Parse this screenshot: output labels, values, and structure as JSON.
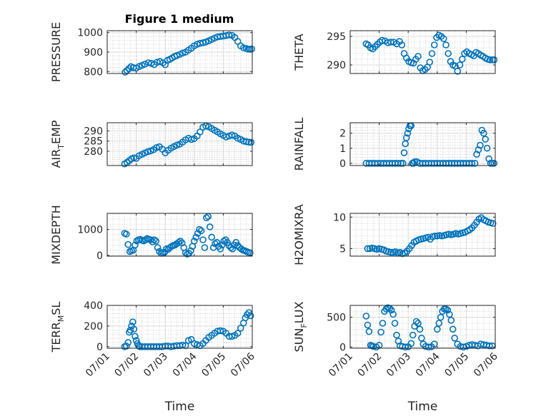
{
  "figure": {
    "title": "Figure 1 medium"
  },
  "chart_data": [
    {
      "type": "scatter",
      "name": "pressure",
      "ylabel": "PRESSURE",
      "ylabel_sub": "",
      "ylabel_post": "",
      "xlim": [
        0,
        5
      ],
      "ylim": [
        790,
        1010
      ],
      "yticks": [
        800,
        900,
        1000
      ],
      "xticks": [
        0,
        1,
        2,
        3,
        4,
        5
      ],
      "xticklabels": [],
      "xlabel": "",
      "title_on_top": true,
      "x": [
        0.62,
        0.68,
        0.75,
        0.82,
        0.9,
        1.0,
        1.1,
        1.2,
        1.3,
        1.42,
        1.52,
        1.62,
        1.72,
        1.82,
        1.92,
        2.0,
        2.08,
        2.16,
        2.24,
        2.32,
        2.4,
        2.5,
        2.6,
        2.7,
        2.8,
        2.9,
        3.0,
        3.1,
        3.2,
        3.3,
        3.4,
        3.5,
        3.6,
        3.7,
        3.8,
        3.9,
        4.0,
        4.1,
        4.2,
        4.3,
        4.4,
        4.5,
        4.6,
        4.7,
        4.8,
        4.86,
        4.92,
        4.98
      ],
      "y": [
        797,
        805,
        815,
        825,
        820,
        818,
        826,
        832,
        838,
        845,
        842,
        836,
        848,
        852,
        845,
        835,
        858,
        863,
        870,
        878,
        882,
        888,
        895,
        900,
        910,
        920,
        932,
        940,
        945,
        948,
        952,
        958,
        965,
        972,
        978,
        980,
        982,
        985,
        988,
        986,
        975,
        955,
        932,
        922,
        918,
        915,
        915,
        916
      ]
    },
    {
      "type": "scatter",
      "name": "theta",
      "ylabel": "THETA",
      "ylabel_sub": "",
      "ylabel_post": "",
      "xlim": [
        0,
        5
      ],
      "ylim": [
        288.5,
        296
      ],
      "yticks": [
        290,
        295
      ],
      "xticks": [
        0,
        1,
        2,
        3,
        4,
        5
      ],
      "xticklabels": [],
      "xlabel": "",
      "title_on_top": false,
      "x": [
        0.55,
        0.62,
        0.7,
        0.78,
        0.86,
        0.94,
        1.02,
        1.1,
        1.2,
        1.3,
        1.4,
        1.5,
        1.6,
        1.7,
        1.78,
        1.86,
        1.94,
        2.02,
        2.1,
        2.18,
        2.26,
        2.34,
        2.42,
        2.5,
        2.58,
        2.66,
        2.74,
        2.82,
        2.9,
        2.98,
        3.06,
        3.14,
        3.22,
        3.3,
        3.38,
        3.46,
        3.54,
        3.62,
        3.7,
        3.78,
        3.86,
        3.94,
        4.02,
        4.1,
        4.18,
        4.26,
        4.34,
        4.42,
        4.5,
        4.58,
        4.66,
        4.74,
        4.82,
        4.9,
        4.96
      ],
      "y": [
        293.7,
        293.5,
        293.0,
        292.8,
        293.2,
        293.6,
        294.0,
        294.3,
        294.2,
        293.9,
        294.0,
        294.0,
        293.7,
        294.1,
        293.5,
        292.0,
        291.2,
        290.6,
        290.4,
        290.3,
        291.0,
        291.5,
        289.5,
        289.0,
        289.2,
        289.6,
        290.5,
        292.0,
        293.5,
        294.8,
        295.2,
        295.0,
        294.6,
        293.5,
        292.0,
        290.6,
        290.0,
        289.8,
        288.9,
        290.0,
        291.0,
        292.0,
        292.3,
        292.0,
        291.8,
        291.6,
        292.2,
        292.0,
        291.7,
        291.5,
        291.2,
        291.0,
        290.9,
        290.9,
        290.9
      ]
    },
    {
      "type": "scatter",
      "name": "air_temp",
      "ylabel": "AIR",
      "ylabel_sub": "T",
      "ylabel_post": "EMP",
      "xlim": [
        0,
        5
      ],
      "ylim": [
        273,
        294
      ],
      "yticks": [
        280,
        285,
        290
      ],
      "xticks": [
        0,
        1,
        2,
        3,
        4,
        5
      ],
      "xticklabels": [],
      "xlabel": "",
      "title_on_top": false,
      "x": [
        0.6,
        0.68,
        0.76,
        0.84,
        0.92,
        1.0,
        1.1,
        1.2,
        1.3,
        1.4,
        1.5,
        1.6,
        1.7,
        1.8,
        1.9,
        2.0,
        2.1,
        2.2,
        2.3,
        2.4,
        2.5,
        2.6,
        2.7,
        2.8,
        2.9,
        3.0,
        3.1,
        3.2,
        3.3,
        3.4,
        3.5,
        3.6,
        3.7,
        3.8,
        3.9,
        4.0,
        4.1,
        4.2,
        4.3,
        4.4,
        4.5,
        4.6,
        4.7,
        4.8,
        4.88,
        4.96
      ],
      "y": [
        273.8,
        274.5,
        275.4,
        276.3,
        276.8,
        276.5,
        277.8,
        278.5,
        279.2,
        279.8,
        280.2,
        280.8,
        281.8,
        282.2,
        281.0,
        279.2,
        280.5,
        281.5,
        282.3,
        283.0,
        283.5,
        284.5,
        285.6,
        286.4,
        285.8,
        286.2,
        287.5,
        289.5,
        291.8,
        292.4,
        292.0,
        291.2,
        290.3,
        289.5,
        288.6,
        287.8,
        287.0,
        287.5,
        288.0,
        287.5,
        286.4,
        285.8,
        285.0,
        284.7,
        284.5,
        284.4
      ]
    },
    {
      "type": "scatter",
      "name": "rainfall",
      "ylabel": "RAINFALL",
      "ylabel_sub": "",
      "ylabel_post": "",
      "xlim": [
        0,
        5
      ],
      "ylim": [
        -0.15,
        2.7
      ],
      "yticks": [
        0,
        1,
        2
      ],
      "xticks": [
        0,
        1,
        2,
        3,
        4,
        5
      ],
      "xticklabels": [],
      "xlabel": "",
      "title_on_top": false,
      "x": [
        0.55,
        0.65,
        0.75,
        0.85,
        0.95,
        1.05,
        1.15,
        1.25,
        1.35,
        1.45,
        1.55,
        1.65,
        1.75,
        1.82,
        1.86,
        1.9,
        1.94,
        1.98,
        2.02,
        2.06,
        2.1,
        2.14,
        2.18,
        2.22,
        2.3,
        2.4,
        2.5,
        2.6,
        2.7,
        2.8,
        2.9,
        3.0,
        3.1,
        3.2,
        3.3,
        3.4,
        3.5,
        3.6,
        3.7,
        3.8,
        3.9,
        4.0,
        4.1,
        4.2,
        4.3,
        4.36,
        4.42,
        4.48,
        4.54,
        4.6,
        4.66,
        4.72,
        4.78,
        4.84,
        4.9,
        4.96
      ],
      "y": [
        0,
        0,
        0,
        0,
        0,
        0,
        0,
        0,
        0,
        0,
        0,
        0,
        0,
        0,
        0.7,
        1.3,
        1.7,
        2.0,
        2.3,
        2.5,
        2.5,
        0,
        0,
        0.1,
        0.1,
        0,
        0,
        0,
        0,
        0,
        0,
        0,
        0,
        0,
        0,
        0,
        0,
        0,
        0,
        0,
        0,
        0,
        0,
        0,
        0,
        0.6,
        0.9,
        1.2,
        2.2,
        2.0,
        1.6,
        1.0,
        0.3,
        0,
        0,
        0
      ]
    },
    {
      "type": "scatter",
      "name": "mixdepth",
      "ylabel": "MIXDEPTH",
      "ylabel_sub": "",
      "ylabel_post": "",
      "xlim": [
        0,
        5
      ],
      "ylim": [
        -30,
        1620
      ],
      "yticks": [
        0,
        1000
      ],
      "xticks": [
        0,
        1,
        2,
        3,
        4,
        5
      ],
      "xticklabels": [],
      "xlabel": "",
      "title_on_top": false,
      "x": [
        0.6,
        0.66,
        0.72,
        0.78,
        0.84,
        0.9,
        0.96,
        1.02,
        1.08,
        1.14,
        1.2,
        1.26,
        1.32,
        1.38,
        1.44,
        1.5,
        1.56,
        1.62,
        1.68,
        1.74,
        1.8,
        1.86,
        1.92,
        1.98,
        2.04,
        2.1,
        2.16,
        2.22,
        2.28,
        2.34,
        2.4,
        2.46,
        2.52,
        2.58,
        2.64,
        2.7,
        2.76,
        2.82,
        2.88,
        2.94,
        3.0,
        3.06,
        3.12,
        3.18,
        3.24,
        3.3,
        3.36,
        3.42,
        3.48,
        3.54,
        3.6,
        3.66,
        3.72,
        3.78,
        3.84,
        3.9,
        3.96,
        4.02,
        4.08,
        4.14,
        4.2,
        4.26,
        4.32,
        4.38,
        4.44,
        4.5,
        4.56,
        4.62,
        4.68,
        4.74,
        4.8,
        4.86,
        4.92
      ],
      "y": [
        850,
        820,
        420,
        150,
        180,
        200,
        400,
        560,
        600,
        620,
        580,
        560,
        600,
        650,
        620,
        600,
        520,
        600,
        550,
        300,
        150,
        80,
        100,
        120,
        250,
        230,
        300,
        350,
        380,
        400,
        450,
        500,
        550,
        480,
        300,
        100,
        50,
        80,
        180,
        350,
        550,
        700,
        850,
        1000,
        950,
        600,
        300,
        1450,
        1500,
        1100,
        700,
        300,
        450,
        500,
        350,
        250,
        400,
        550,
        600,
        500,
        380,
        300,
        250,
        400,
        500,
        380,
        300,
        250,
        200,
        180,
        150,
        120,
        100
      ]
    },
    {
      "type": "scatter",
      "name": "h2omixra",
      "ylabel": "H2OMIXRA",
      "ylabel_sub": "",
      "ylabel_post": "",
      "xlim": [
        0,
        5
      ],
      "ylim": [
        3.8,
        10.6
      ],
      "yticks": [
        5,
        10
      ],
      "xticks": [
        0,
        1,
        2,
        3,
        4,
        5
      ],
      "xticklabels": [],
      "xlabel": "",
      "title_on_top": false,
      "x": [
        0.6,
        0.68,
        0.76,
        0.84,
        0.92,
        1.0,
        1.08,
        1.16,
        1.24,
        1.32,
        1.4,
        1.48,
        1.56,
        1.64,
        1.72,
        1.8,
        1.88,
        1.96,
        2.04,
        2.12,
        2.2,
        2.28,
        2.36,
        2.44,
        2.52,
        2.6,
        2.68,
        2.76,
        2.84,
        2.92,
        3.0,
        3.08,
        3.16,
        3.24,
        3.32,
        3.4,
        3.48,
        3.56,
        3.64,
        3.72,
        3.8,
        3.88,
        3.96,
        4.04,
        4.12,
        4.2,
        4.28,
        4.36,
        4.44,
        4.52,
        4.6,
        4.68,
        4.76,
        4.84,
        4.92
      ],
      "y": [
        5.0,
        5.0,
        5.1,
        5.0,
        4.9,
        5.0,
        4.9,
        4.8,
        4.6,
        4.5,
        4.4,
        4.4,
        4.5,
        4.3,
        4.4,
        4.2,
        4.3,
        4.6,
        5.0,
        5.5,
        6.0,
        6.2,
        6.4,
        6.5,
        6.6,
        6.7,
        6.8,
        6.5,
        6.9,
        7.0,
        7.0,
        7.1,
        7.0,
        7.1,
        7.2,
        7.3,
        7.2,
        7.3,
        7.4,
        7.3,
        7.4,
        7.5,
        7.6,
        7.8,
        8.0,
        8.3,
        8.7,
        9.2,
        9.7,
        9.9,
        9.6,
        9.4,
        9.2,
        9.1,
        9.0
      ]
    },
    {
      "type": "scatter",
      "name": "terr_msl",
      "ylabel": "TERR",
      "ylabel_sub": "M",
      "ylabel_post": "SL",
      "xlim": [
        0,
        5
      ],
      "ylim": [
        -15,
        400
      ],
      "yticks": [
        0,
        200,
        400
      ],
      "xticks": [
        0,
        1,
        2,
        3,
        4,
        5
      ],
      "xticklabels": [
        "07/01",
        "07/02",
        "07/03",
        "07/04",
        "07/05",
        "07/06"
      ],
      "xlabel": "Time",
      "title_on_top": false,
      "x": [
        0.6,
        0.66,
        0.72,
        0.76,
        0.8,
        0.84,
        0.88,
        0.92,
        0.96,
        1.0,
        1.04,
        1.08,
        1.12,
        1.2,
        1.3,
        1.4,
        1.5,
        1.6,
        1.7,
        1.8,
        1.9,
        2.0,
        2.1,
        2.2,
        2.3,
        2.4,
        2.5,
        2.6,
        2.7,
        2.8,
        2.9,
        3.0,
        3.1,
        3.2,
        3.3,
        3.4,
        3.5,
        3.6,
        3.7,
        3.8,
        3.9,
        4.0,
        4.1,
        4.2,
        4.3,
        4.4,
        4.5,
        4.6,
        4.7,
        4.76,
        4.82,
        4.88,
        4.94
      ],
      "y": [
        0,
        5,
        40,
        140,
        160,
        200,
        240,
        170,
        100,
        60,
        30,
        10,
        0,
        0,
        0,
        0,
        0,
        0,
        0,
        0,
        0,
        5,
        5,
        0,
        5,
        10,
        10,
        15,
        10,
        60,
        70,
        30,
        20,
        10,
        30,
        60,
        90,
        110,
        130,
        150,
        155,
        150,
        130,
        100,
        100,
        110,
        130,
        180,
        230,
        280,
        310,
        330,
        300
      ]
    },
    {
      "type": "scatter",
      "name": "sun_flux",
      "ylabel": "SUN",
      "ylabel_sub": "F",
      "ylabel_post": "LUX",
      "xlim": [
        0,
        5
      ],
      "ylim": [
        -20,
        700
      ],
      "yticks": [
        0,
        500
      ],
      "xticks": [
        0,
        1,
        2,
        3,
        4,
        5
      ],
      "xticklabels": [
        "07/01",
        "07/02",
        "07/03",
        "07/04",
        "07/05",
        "07/06"
      ],
      "xlabel": "Time",
      "title_on_top": false,
      "x": [
        0.55,
        0.6,
        0.65,
        0.7,
        0.75,
        0.8,
        0.9,
        1.0,
        1.06,
        1.12,
        1.18,
        1.24,
        1.3,
        1.36,
        1.42,
        1.48,
        1.54,
        1.6,
        1.66,
        1.72,
        1.8,
        1.9,
        2.0,
        2.1,
        2.16,
        2.22,
        2.28,
        2.34,
        2.4,
        2.46,
        2.52,
        2.6,
        2.7,
        2.8,
        2.9,
        3.0,
        3.06,
        3.12,
        3.18,
        3.24,
        3.3,
        3.36,
        3.42,
        3.48,
        3.54,
        3.6,
        3.7,
        3.8,
        3.9,
        4.0,
        4.1,
        4.2,
        4.3,
        4.4,
        4.5,
        4.6,
        4.7,
        4.8,
        4.9
      ],
      "y": [
        520,
        370,
        260,
        30,
        20,
        10,
        0,
        30,
        250,
        400,
        600,
        640,
        660,
        650,
        620,
        550,
        400,
        200,
        100,
        20,
        10,
        0,
        5,
        60,
        200,
        350,
        430,
        400,
        300,
        150,
        50,
        10,
        0,
        5,
        50,
        300,
        400,
        500,
        600,
        640,
        640,
        620,
        550,
        450,
        300,
        150,
        50,
        10,
        0,
        10,
        30,
        40,
        30,
        20,
        50,
        40,
        30,
        20,
        20
      ]
    }
  ]
}
